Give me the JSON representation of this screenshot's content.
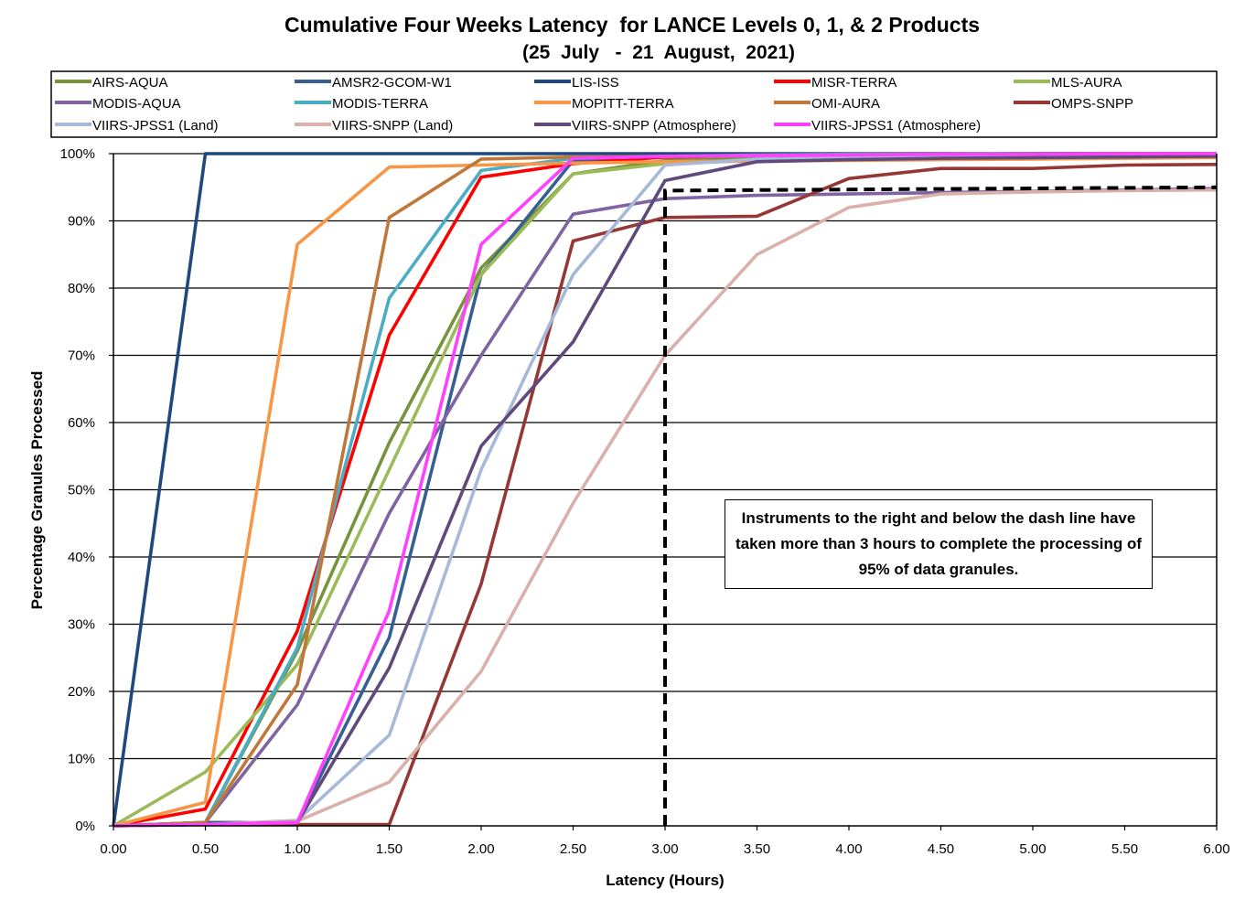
{
  "chart_data": {
    "type": "line",
    "title": "Cumulative Four Weeks Latency  for LANCE Levels 0, 1, & 2 Products",
    "subtitle": "(25  July   -  21  August,  2021)",
    "xlabel": "Latency (Hours)",
    "ylabel": "Percentage Granules Processed",
    "x": [
      0,
      0.5,
      1.0,
      1.5,
      2.0,
      2.5,
      3.0,
      3.5,
      4.0,
      4.5,
      5.0,
      5.5,
      6.0
    ],
    "x_tick_labels": [
      "0.00",
      "0.50",
      "1.00",
      "1.50",
      "2.00",
      "2.50",
      "3.00",
      "3.50",
      "4.00",
      "4.50",
      "5.00",
      "5.50",
      "6.00"
    ],
    "y_tick_labels": [
      "0%",
      "10%",
      "20%",
      "30%",
      "40%",
      "50%",
      "60%",
      "70%",
      "80%",
      "90%",
      "100%"
    ],
    "xlim": [
      0,
      6
    ],
    "ylim": [
      0,
      100
    ],
    "grid": "horizontal",
    "legend_position": "top",
    "series": [
      {
        "name": "AIRS-AQUA",
        "color": "#77933C",
        "values": [
          0,
          0.5,
          26,
          57,
          83,
          97,
          99,
          99.5,
          99.7,
          99.8,
          99.9,
          99.9,
          100
        ]
      },
      {
        "name": "AMSR2-GCOM-W1",
        "color": "#376092",
        "values": [
          0,
          0.5,
          0.5,
          28,
          82,
          99,
          99.5,
          99.8,
          99.9,
          99.9,
          100,
          100,
          100
        ]
      },
      {
        "name": "LIS-ISS",
        "color": "#1F497D",
        "values": [
          0,
          100,
          100,
          100,
          100,
          100,
          100,
          100,
          100,
          100,
          100,
          100,
          100
        ]
      },
      {
        "name": "MISR-TERRA",
        "color": "#FF0000",
        "values": [
          0,
          2.5,
          29,
          73,
          96.5,
          98.5,
          99.5,
          99.8,
          99.9,
          99.9,
          100,
          100,
          100
        ]
      },
      {
        "name": "MLS-AURA",
        "color": "#9BBB59",
        "values": [
          0,
          8,
          24,
          53,
          82,
          97,
          98.5,
          99,
          99.3,
          99.5,
          99.7,
          99.8,
          99.9
        ]
      },
      {
        "name": "MODIS-AQUA",
        "color": "#8064A2",
        "values": [
          0,
          0.5,
          18,
          46.5,
          70,
          91,
          93.3,
          93.8,
          94,
          94.2,
          94.4,
          94.6,
          94.8
        ]
      },
      {
        "name": "MODIS-TERRA",
        "color": "#4BACC6",
        "values": [
          0,
          0.5,
          26.5,
          78.5,
          97.5,
          99.3,
          99.6,
          99.8,
          99.9,
          99.9,
          100,
          100,
          100
        ]
      },
      {
        "name": "MOPITT-TERRA",
        "color": "#F79646",
        "values": [
          0,
          3.5,
          86.5,
          98,
          98.3,
          98.6,
          98.8,
          98.9,
          99,
          99.1,
          99.2,
          99.3,
          99.4
        ]
      },
      {
        "name": "OMI-AURA",
        "color": "#C0773A",
        "values": [
          0,
          0.5,
          21,
          90.5,
          99.2,
          99.5,
          99.6,
          99.7,
          99.8,
          99.9,
          99.9,
          100,
          100
        ]
      },
      {
        "name": "OMPS-SNPP",
        "color": "#953735",
        "values": [
          0,
          0.2,
          0.2,
          0.2,
          36,
          87,
          90.5,
          90.7,
          96.3,
          97.8,
          97.8,
          98.3,
          98.4
        ]
      },
      {
        "name": "VIIRS-JPSS1 (Land)",
        "color": "#A6B9D9",
        "values": [
          0,
          0.2,
          0.8,
          13.5,
          53,
          82,
          98.3,
          99.2,
          99.5,
          99.6,
          99.7,
          99.8,
          99.8
        ]
      },
      {
        "name": "VIIRS-SNPP (Land)",
        "color": "#D9B0AA",
        "values": [
          0,
          0.2,
          0.7,
          6.5,
          23,
          48,
          70,
          85,
          92,
          94,
          94.3,
          94.5,
          94.6
        ]
      },
      {
        "name": "VIIRS-SNPP (Atmosphere)",
        "color": "#604A7B",
        "values": [
          0,
          0.2,
          0.5,
          23.5,
          56.5,
          72,
          96,
          98.8,
          99.1,
          99.3,
          99.4,
          99.5,
          99.6
        ]
      },
      {
        "name": "VIIRS-JPSS1 (Atmosphere)",
        "color": "#FF40FF",
        "values": [
          0,
          0.2,
          0.5,
          32,
          86.5,
          99.3,
          99.6,
          99.7,
          99.8,
          99.9,
          99.9,
          100,
          100
        ]
      }
    ],
    "threshold_line": {
      "x": [
        3.0,
        3.0,
        6.0
      ],
      "y": [
        0,
        94.5,
        95
      ],
      "style": "dashed",
      "color": "#000000"
    },
    "annotation": "Instruments to the right and below the dash line have taken more than 3 hours to complete the processing of 95% of data granules."
  }
}
